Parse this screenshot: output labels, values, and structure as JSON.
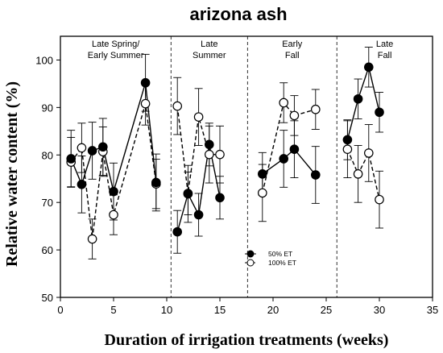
{
  "chart_data": {
    "type": "line",
    "title": "arizona ash",
    "xlabel": "Duration of irrigation treatments (weeks)",
    "ylabel": "Relative water content (%)",
    "xlim": [
      0,
      35
    ],
    "ylim": [
      50,
      105
    ],
    "xticks": [
      0,
      5,
      10,
      15,
      20,
      25,
      30,
      35
    ],
    "yticks": [
      50,
      60,
      70,
      80,
      90,
      100
    ],
    "grid": false,
    "legend_position": "lower-center",
    "dividers_x": [
      10.4,
      17.6,
      26.0
    ],
    "regions": [
      {
        "label_lines": [
          "Late Spring/",
          "Early Summer"
        ],
        "x_center": 5.2
      },
      {
        "label_lines": [
          "Late",
          "Summer"
        ],
        "x_center": 14.0
      },
      {
        "label_lines": [
          "Early",
          "Fall"
        ],
        "x_center": 21.8
      },
      {
        "label_lines": [
          "Late",
          "Fall"
        ],
        "x_center": 30.5
      }
    ],
    "series": [
      {
        "name": "50% ET",
        "marker": "filled-circle",
        "line_style": "solid",
        "color": "#000000",
        "segments": [
          [
            {
              "x": 1,
              "y": 79.2,
              "err": 6.0
            },
            {
              "x": 2,
              "y": 73.8,
              "err": 6.0
            },
            {
              "x": 3,
              "y": 80.9,
              "err": 6.0
            },
            {
              "x": 4,
              "y": 81.7,
              "err": 6.0
            },
            {
              "x": 5,
              "y": 72.3,
              "err": 6.0
            },
            {
              "x": 8,
              "y": 95.2,
              "err": 6.0
            },
            {
              "x": 9,
              "y": 74.2,
              "err": 6.0
            }
          ],
          [
            {
              "x": 11,
              "y": 63.8,
              "err": 4.5
            },
            {
              "x": 12,
              "y": 71.8,
              "err": 6.0
            },
            {
              "x": 13,
              "y": 67.4,
              "err": 4.5
            },
            {
              "x": 14,
              "y": 82.2,
              "err": 4.5
            },
            {
              "x": 15,
              "y": 71.0,
              "err": 4.5
            }
          ],
          [
            {
              "x": 19,
              "y": 76.0,
              "err": 4.5
            },
            {
              "x": 21,
              "y": 79.2,
              "err": 6.0
            },
            {
              "x": 22,
              "y": 81.2,
              "err": 6.0
            },
            {
              "x": 24,
              "y": 75.8,
              "err": 6.0
            }
          ],
          [
            {
              "x": 27,
              "y": 83.2,
              "err": 4.2
            },
            {
              "x": 28,
              "y": 91.8,
              "err": 4.2
            },
            {
              "x": 29,
              "y": 98.5,
              "err": 4.2
            },
            {
              "x": 30,
              "y": 89.0,
              "err": 4.2
            }
          ]
        ]
      },
      {
        "name": "100% ET",
        "marker": "open-circle",
        "line_style": "dashed",
        "color": "#000000",
        "segments": [
          [
            {
              "x": 1,
              "y": 78.5,
              "err": 5.2
            },
            {
              "x": 2,
              "y": 81.5,
              "err": 5.2
            },
            {
              "x": 3,
              "y": 62.3,
              "err": 4.2
            },
            {
              "x": 4,
              "y": 80.7,
              "err": 5.2
            },
            {
              "x": 5,
              "y": 67.4,
              "err": 4.2
            },
            {
              "x": 8,
              "y": 90.8,
              "err": 4.5
            },
            {
              "x": 9,
              "y": 73.9,
              "err": 5.2
            }
          ],
          [
            {
              "x": 11,
              "y": 90.3,
              "err": 6.0
            },
            {
              "x": 12,
              "y": 71.9,
              "err": 4.5
            },
            {
              "x": 13,
              "y": 88.0,
              "err": 6.0
            },
            {
              "x": 14,
              "y": 80.1,
              "err": 6.0
            },
            {
              "x": 15,
              "y": 80.1,
              "err": 6.0
            }
          ],
          [
            {
              "x": 19,
              "y": 72.0,
              "err": 6.0
            },
            {
              "x": 21,
              "y": 91.0,
              "err": 4.2
            },
            {
              "x": 22,
              "y": 88.3,
              "err": 4.2
            },
            {
              "x": 24,
              "y": 89.6,
              "err": 4.2
            }
          ],
          [
            {
              "x": 27,
              "y": 81.2,
              "err": 6.0
            },
            {
              "x": 28,
              "y": 76.0,
              "err": 6.0
            },
            {
              "x": 29,
              "y": 80.4,
              "err": 6.0
            },
            {
              "x": 30,
              "y": 70.6,
              "err": 6.0
            }
          ]
        ]
      }
    ]
  }
}
